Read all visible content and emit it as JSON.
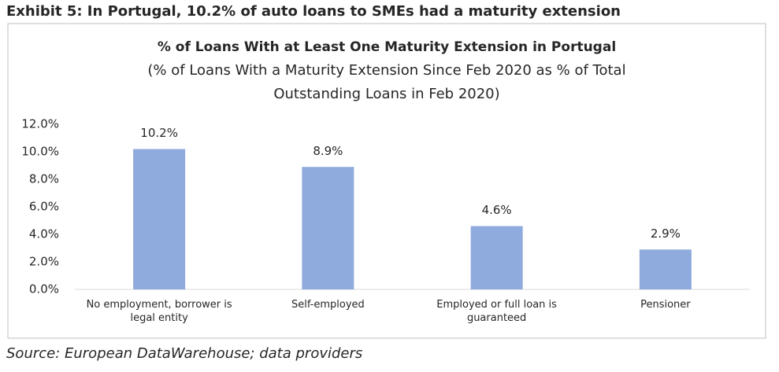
{
  "exhibit_title": "Exhibit 5: In Portugal, 10.2% of auto loans to SMEs had a maturity extension",
  "source": "Source: European DataWarehouse; data providers",
  "chart_data": {
    "type": "bar",
    "title": "% of Loans With at Least One Maturity Extension in Portugal",
    "subtitle": [
      "(% of Loans With a Maturity Extension Since Feb 2020 as % of Total",
      "Outstanding Loans in Feb 2020)"
    ],
    "categories": [
      "No employment, borrower is legal entity",
      "Self-employed",
      "Employed or full loan is guaranteed",
      "Pensioner"
    ],
    "values": [
      10.2,
      8.9,
      4.6,
      2.9
    ],
    "value_labels": [
      "10.2%",
      "8.9%",
      "4.6%",
      "2.9%"
    ],
    "color": "#8faadc",
    "ylim": [
      0,
      12
    ],
    "yticks": [
      {
        "value": 0,
        "label": "0.0%"
      },
      {
        "value": 2,
        "label": "2.0%"
      },
      {
        "value": 4,
        "label": "4.0%"
      },
      {
        "value": 6,
        "label": "6.0%"
      },
      {
        "value": 8,
        "label": "8.0%"
      },
      {
        "value": 10,
        "label": "10.0%"
      },
      {
        "value": 12,
        "label": "12.0%"
      }
    ],
    "grid": false
  }
}
